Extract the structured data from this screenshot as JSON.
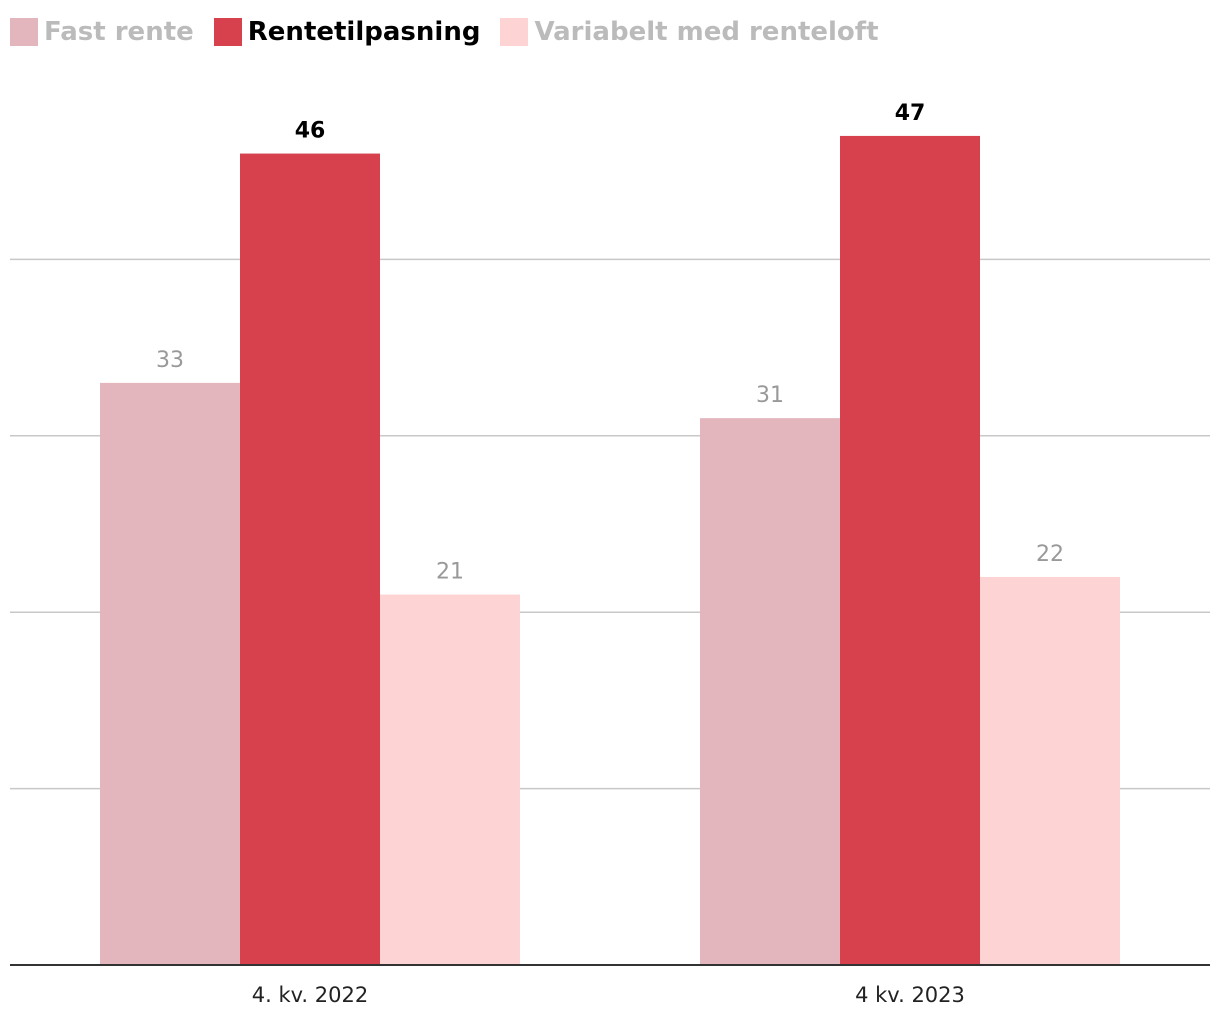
{
  "chart_data": {
    "type": "bar",
    "categories": [
      "4. kv. 2022",
      "4 kv. 2023"
    ],
    "series": [
      {
        "name": "Fast rente",
        "values": [
          33,
          31
        ],
        "color": "#e3b5bd",
        "label_color": "#999999",
        "label_bold": false,
        "legend_color": "#bbbbbb"
      },
      {
        "name": "Rentetilpasning",
        "values": [
          46,
          47
        ],
        "color": "#d6414d",
        "label_color": "#000000",
        "label_bold": true,
        "legend_color": "#000000"
      },
      {
        "name": "Variabelt med renteloft",
        "values": [
          21,
          22
        ],
        "color": "#fdd3d4",
        "label_color": "#999999",
        "label_bold": false,
        "legend_color": "#bbbbbb"
      }
    ],
    "ylim": [
      0,
      50
    ],
    "y_gridlines": [
      10,
      20,
      30,
      40
    ],
    "grid": true,
    "legend_position": "top-left",
    "title": "",
    "xlabel": "",
    "ylabel": ""
  }
}
